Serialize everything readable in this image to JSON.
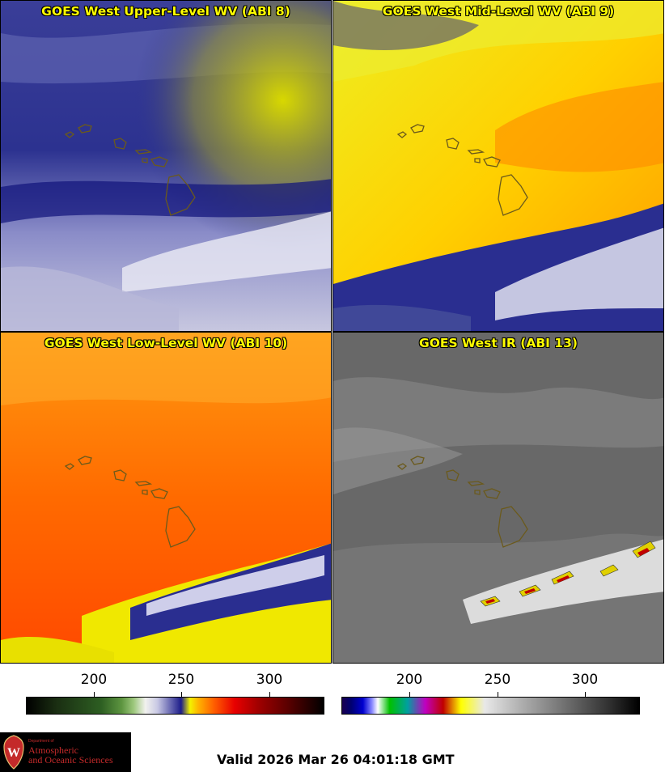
{
  "panels": [
    {
      "title": "GOES West Upper-Level WV (ABI 8)"
    },
    {
      "title": "GOES West Mid-Level WV (ABI 9)"
    },
    {
      "title": "GOES West Low-Level WV (ABI 10)"
    },
    {
      "title": "GOES West IR (ABI 13)"
    }
  ],
  "colorbar_left": {
    "ticks": [
      "200",
      "250",
      "300"
    ]
  },
  "colorbar_right": {
    "ticks": [
      "200",
      "250",
      "300"
    ]
  },
  "logo": {
    "line1": "Department of",
    "line2": "Atmospheric",
    "line3": "and Oceanic Sciences"
  },
  "valid_text": "Valid 2026 Mar 26 04:01:18 GMT",
  "colors": {
    "title_text": "#ffff00",
    "coastline": "#6b5a1c"
  }
}
